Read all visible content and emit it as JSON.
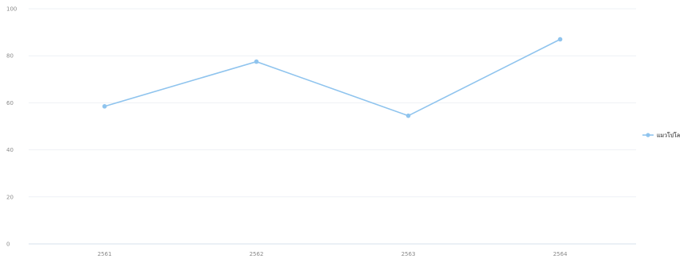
{
  "chart_data": {
    "type": "line",
    "title": "",
    "xlabel": "",
    "ylabel": "",
    "categories": [
      "2561",
      "2562",
      "2563",
      "2564"
    ],
    "yticks": [
      0,
      20,
      40,
      60,
      80,
      100
    ],
    "ylim": [
      0,
      100
    ],
    "grid": true,
    "legend_position": "right",
    "series": [
      {
        "name": "แมวโปโล",
        "values": [
          58.5,
          77.5,
          54.5,
          87
        ],
        "color": "#8fc4ee"
      }
    ]
  }
}
